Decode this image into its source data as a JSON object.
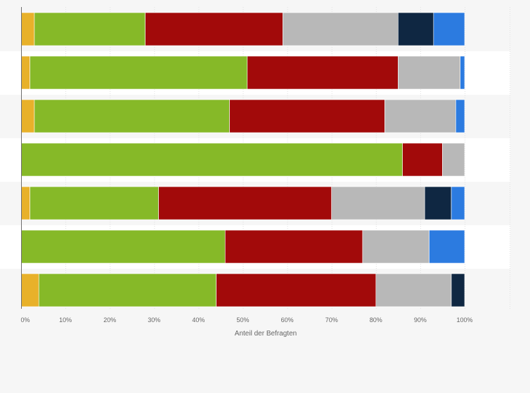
{
  "chart_data": {
    "type": "bar",
    "orientation": "horizontal",
    "stacked": true,
    "xlabel": "Anteil der Befragten",
    "ylabel": "",
    "xlim": [
      0,
      100
    ],
    "x_ticks": [
      "0%",
      "10%",
      "20%",
      "30%",
      "40%",
      "50%",
      "60%",
      "70%",
      "80%",
      "90%",
      "100%"
    ],
    "grid": true,
    "legend": "none",
    "categories": [
      "",
      "",
      "",
      "",
      "",
      "",
      ""
    ],
    "series": [
      {
        "color": "#e8b12a",
        "values": [
          3,
          2,
          3,
          0,
          2,
          0,
          4
        ]
      },
      {
        "color": "#86b928",
        "values": [
          25,
          49,
          44,
          86,
          29,
          46,
          40
        ]
      },
      {
        "color": "#a20a0a",
        "values": [
          31,
          34,
          35,
          9,
          39,
          31,
          36
        ]
      },
      {
        "color": "#b8b8b8",
        "values": [
          26,
          14,
          16,
          5,
          21,
          15,
          17
        ]
      },
      {
        "color": "#0f2742",
        "values": [
          8,
          0,
          0,
          0,
          6,
          0,
          3
        ]
      },
      {
        "color": "#2c7be0",
        "values": [
          7,
          1,
          2,
          0,
          3,
          8,
          0
        ]
      }
    ]
  }
}
